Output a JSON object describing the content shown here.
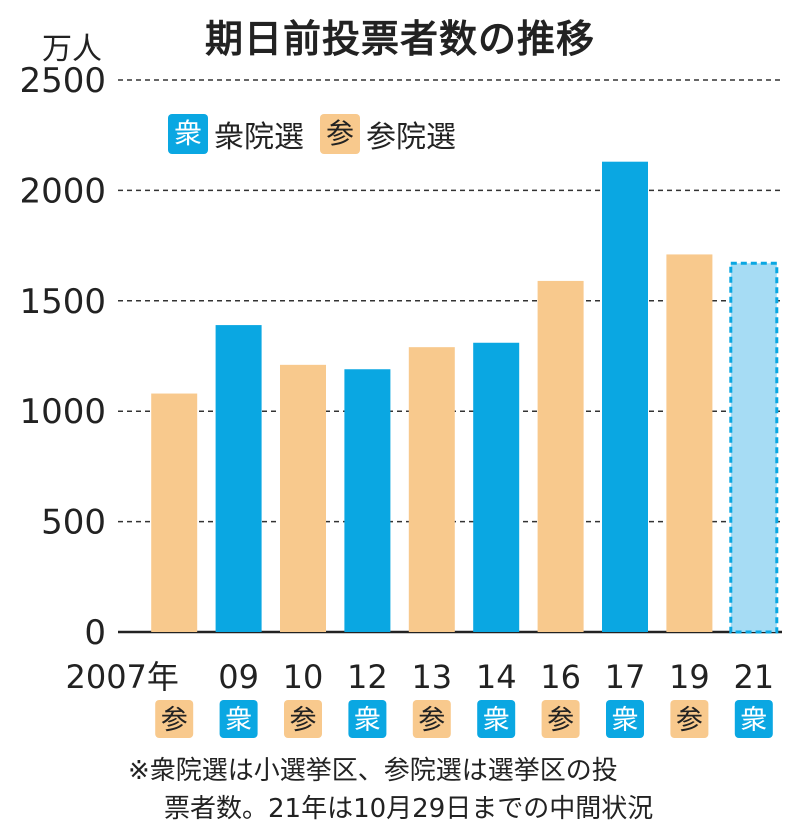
{
  "title": "期日前投票者数の推移",
  "unit": "万人",
  "legend": [
    {
      "badge": "衆",
      "label": "衆院選",
      "type": "shu"
    },
    {
      "badge": "参",
      "label": "参院選",
      "type": "san"
    }
  ],
  "note": {
    "line1": "※衆院選は小選挙区、参院選は選挙区の投",
    "line2": "票者数。21年は10月29日までの中間状況"
  },
  "colors": {
    "shu": "#0aa7e2",
    "san": "#f8c98d",
    "shu_interim": "#a6dcf4",
    "shu_interim_border": "#0aa7e2",
    "grid": "#333333"
  },
  "chart_data": {
    "type": "bar",
    "title": "期日前投票者数の推移",
    "ylabel": "万人",
    "ylim": [
      0,
      2500
    ],
    "yticks": [
      0,
      500,
      1000,
      1500,
      2000,
      2500
    ],
    "grid": true,
    "legend_position": "top-left",
    "categories": [
      "2007年",
      "09",
      "10",
      "12",
      "13",
      "14",
      "16",
      "17",
      "19",
      "21"
    ],
    "election_type": [
      "参",
      "衆",
      "参",
      "衆",
      "参",
      "衆",
      "参",
      "衆",
      "参",
      "衆"
    ],
    "values": [
      1080,
      1390,
      1210,
      1190,
      1290,
      1310,
      1590,
      2130,
      1710,
      1670
    ],
    "interim": [
      false,
      false,
      false,
      false,
      false,
      false,
      false,
      false,
      false,
      true
    ]
  }
}
